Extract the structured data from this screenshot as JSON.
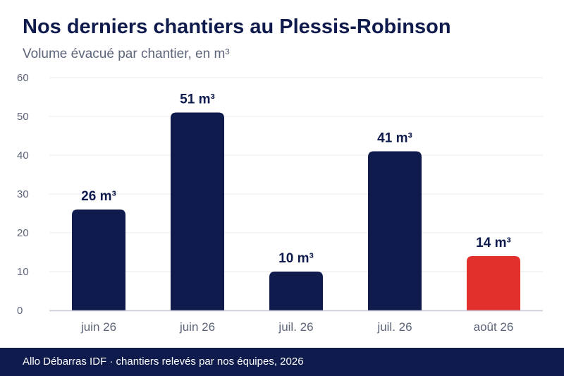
{
  "header": {
    "title": "Nos derniers chantiers au Plessis-Robinson",
    "subtitle": "Volume évacué par chantier, en m³"
  },
  "footer": {
    "text": "Allo Débarras IDF · chantiers relevés par nos équipes, 2026"
  },
  "colors": {
    "bar_default": "#0f1b4c",
    "bar_highlight": "#e2302d",
    "title": "#0f1b4c",
    "axis_text": "#5c6478",
    "grid": "#ebebf0",
    "footer_bg": "#0f1b4c"
  },
  "chart_data": {
    "type": "bar",
    "categories": [
      "juin 26",
      "juin 26",
      "juil. 26",
      "juil. 26",
      "août 26"
    ],
    "values": [
      26,
      51,
      10,
      41,
      14
    ],
    "value_labels": [
      "26 m³",
      "51 m³",
      "10 m³",
      "41 m³",
      "14 m³"
    ],
    "highlight_index": 4,
    "title": "Nos derniers chantiers au Plessis-Robinson",
    "subtitle": "Volume évacué par chantier, en m³",
    "xlabel": "",
    "ylabel": "",
    "ylim": [
      0,
      60
    ],
    "yticks": [
      0,
      10,
      20,
      30,
      40,
      50,
      60
    ],
    "grid": true,
    "legend": "none"
  }
}
